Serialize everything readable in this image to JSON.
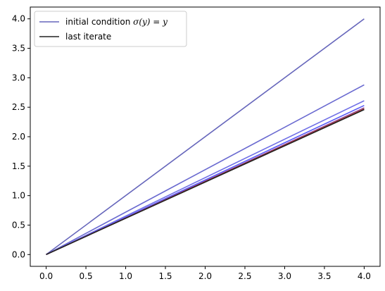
{
  "chart_data": {
    "type": "line",
    "title": "",
    "xlabel": "",
    "ylabel": "",
    "xlim": [
      -0.2,
      4.2
    ],
    "ylim": [
      -0.2,
      4.2
    ],
    "xticks": [
      0.0,
      0.5,
      1.0,
      1.5,
      2.0,
      2.5,
      3.0,
      3.5,
      4.0
    ],
    "xtick_labels": [
      "0.0",
      "0.5",
      "1.0",
      "1.5",
      "2.0",
      "2.5",
      "3.0",
      "3.5",
      "4.0"
    ],
    "yticks": [
      0.0,
      0.5,
      1.0,
      1.5,
      2.0,
      2.5,
      3.0,
      3.5,
      4.0
    ],
    "ytick_labels": [
      "0.0",
      "0.5",
      "1.0",
      "1.5",
      "2.0",
      "2.5",
      "3.0",
      "3.5",
      "4.0"
    ],
    "grid": false,
    "legend_position": "top-left",
    "legend": [
      {
        "label_prefix": "initial condition ",
        "label_math": "σ(y) = y",
        "color": "#6666bb"
      },
      {
        "label_prefix": "last iterate",
        "label_math": "",
        "color": "#222222"
      }
    ],
    "series": [
      {
        "x": [
          0,
          4
        ],
        "y": [
          0,
          4.0
        ],
        "color": "#6666bb",
        "width": 1.6
      },
      {
        "x": [
          0,
          4
        ],
        "y": [
          0,
          2.88
        ],
        "color": "#6a6ad0",
        "width": 1.6
      },
      {
        "x": [
          0,
          4
        ],
        "y": [
          0,
          2.61
        ],
        "color": "#6f6fe6",
        "width": 1.6
      },
      {
        "x": [
          0,
          4
        ],
        "y": [
          0,
          2.53
        ],
        "color": "#5a5af5",
        "width": 1.6
      },
      {
        "x": [
          0,
          4
        ],
        "y": [
          0,
          2.49
        ],
        "color": "#8a3a8a",
        "width": 1.4
      },
      {
        "x": [
          0,
          4
        ],
        "y": [
          0,
          2.47
        ],
        "color": "#b03010",
        "width": 1.4
      },
      {
        "x": [
          0,
          4
        ],
        "y": [
          0,
          2.46
        ],
        "color": "#222222",
        "width": 1.6
      }
    ]
  }
}
